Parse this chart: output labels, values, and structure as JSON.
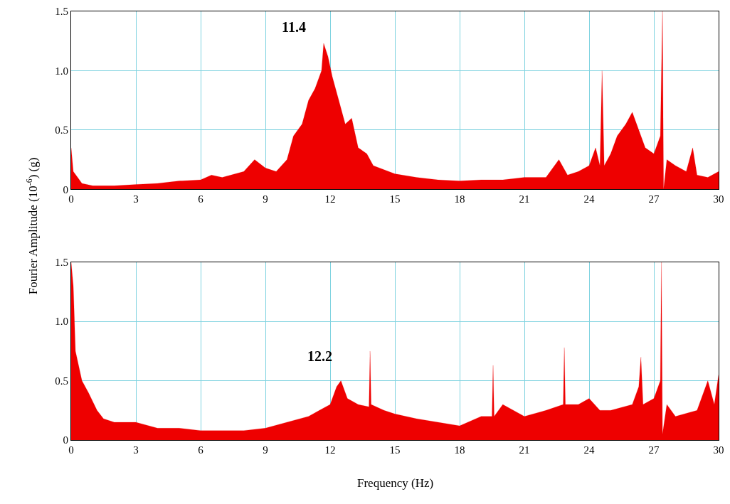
{
  "chart_data": [
    {
      "type": "area",
      "ylabel": "Fourier Amplitude (10$^{-6}$) (g)",
      "color": "#ee0000",
      "x": [
        0,
        0.1,
        0.3,
        0.5,
        1,
        2,
        3,
        4,
        5,
        6,
        6.5,
        7,
        8,
        8.5,
        9,
        9.5,
        10,
        10.3,
        10.7,
        11,
        11.3,
        11.6,
        11.7,
        11.9,
        12.1,
        12.4,
        12.7,
        13,
        13.3,
        13.7,
        14,
        15,
        16,
        17,
        18,
        19,
        20,
        21,
        22,
        22.6,
        23,
        23.5,
        24,
        24.3,
        24.5,
        24.6,
        24.7,
        25,
        25.3,
        25.7,
        26,
        26.3,
        26.6,
        27,
        27.3,
        27.4,
        27.45,
        27.6,
        28,
        28.5,
        28.8,
        29,
        29.5,
        30
      ],
      "values": [
        0.35,
        0.15,
        0.1,
        0.05,
        0.03,
        0.03,
        0.04,
        0.05,
        0.07,
        0.08,
        0.12,
        0.1,
        0.15,
        0.25,
        0.18,
        0.15,
        0.25,
        0.45,
        0.55,
        0.75,
        0.85,
        1.0,
        1.23,
        1.12,
        0.95,
        0.75,
        0.55,
        0.6,
        0.35,
        0.3,
        0.2,
        0.13,
        0.1,
        0.08,
        0.07,
        0.08,
        0.08,
        0.1,
        0.1,
        0.25,
        0.12,
        0.15,
        0.2,
        0.35,
        0.2,
        1.0,
        0.2,
        0.3,
        0.45,
        0.55,
        0.65,
        0.5,
        0.35,
        0.3,
        0.45,
        1.5,
        0.0,
        0.25,
        0.2,
        0.15,
        0.35,
        0.12,
        0.1,
        0.15
      ],
      "xlim": [
        0,
        30
      ],
      "xticks": [
        0,
        3,
        6,
        9,
        12,
        15,
        18,
        21,
        24,
        27,
        30
      ],
      "ylim": [
        0,
        1.5
      ],
      "yticks": [
        0,
        0.5,
        {
          "value": 1,
          "label": "1.0"
        },
        1.5
      ],
      "grid": true,
      "annotations": [
        "11.4"
      ]
    },
    {
      "type": "area",
      "xlabel": "Frequency (Hz)",
      "color": "#ee0000",
      "x": [
        0,
        0.1,
        0.2,
        0.5,
        0.8,
        1.2,
        1.5,
        2,
        3,
        4,
        5,
        6,
        7,
        8,
        9,
        10,
        11,
        11.5,
        12,
        12.3,
        12.5,
        12.8,
        13.3,
        13.8,
        13.85,
        13.9,
        14.5,
        15,
        16,
        17,
        18,
        19,
        19.5,
        19.55,
        19.6,
        20,
        21,
        22,
        22.8,
        22.85,
        22.9,
        23.5,
        24,
        24.5,
        25,
        26,
        26.3,
        26.4,
        26.5,
        27,
        27.3,
        27.35,
        27.4,
        27.6,
        28,
        29,
        29.5,
        29.8,
        30
      ],
      "values": [
        1.5,
        1.3,
        0.75,
        0.5,
        0.4,
        0.25,
        0.18,
        0.15,
        0.15,
        0.1,
        0.1,
        0.08,
        0.08,
        0.08,
        0.1,
        0.15,
        0.2,
        0.25,
        0.3,
        0.45,
        0.5,
        0.35,
        0.3,
        0.28,
        0.75,
        0.3,
        0.25,
        0.22,
        0.18,
        0.15,
        0.12,
        0.2,
        0.2,
        0.63,
        0.2,
        0.3,
        0.2,
        0.25,
        0.3,
        0.78,
        0.3,
        0.3,
        0.35,
        0.25,
        0.25,
        0.3,
        0.45,
        0.7,
        0.3,
        0.35,
        0.5,
        1.5,
        0.05,
        0.3,
        0.2,
        0.25,
        0.5,
        0.3,
        0.55
      ],
      "xlim": [
        0,
        30
      ],
      "xticks": [
        0,
        3,
        6,
        9,
        12,
        15,
        18,
        21,
        24,
        27,
        30
      ],
      "ylim": [
        0,
        1.5
      ],
      "yticks": [
        0,
        0.5,
        {
          "value": 1,
          "label": "1.0"
        },
        1.5
      ],
      "grid": true,
      "annotations": [
        "12.2"
      ]
    }
  ]
}
